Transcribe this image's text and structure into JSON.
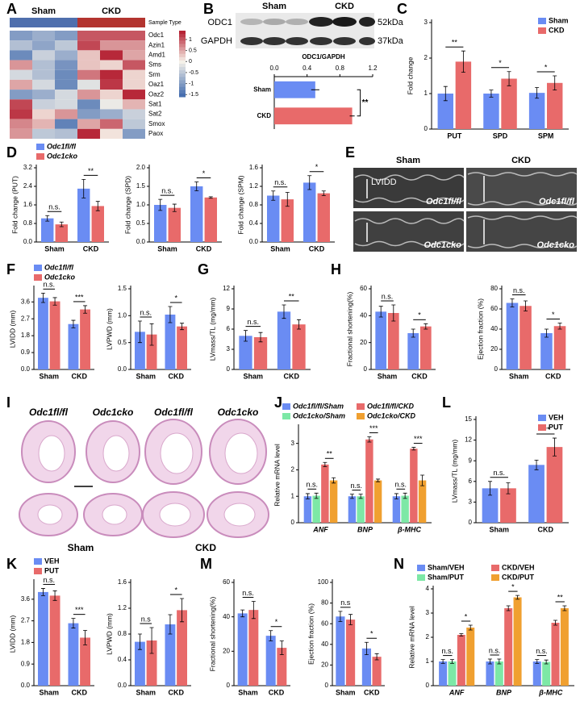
{
  "panel_labels": [
    "A",
    "B",
    "C",
    "D",
    "E",
    "F",
    "G",
    "H",
    "I",
    "J",
    "K",
    "L",
    "M",
    "N"
  ],
  "blot": {
    "groups": [
      "Sham",
      "CKD"
    ],
    "bands": [
      {
        "name": "ODC1",
        "size": "52kDa"
      },
      {
        "name": "GAPDH",
        "size": "37kDa"
      }
    ]
  },
  "echo": {
    "columns": [
      "Sham",
      "CKD"
    ],
    "measure": "LVIDD",
    "rows": [
      "Odc1fl/fl",
      "Odc1cko"
    ]
  },
  "histology": {
    "genotypes": [
      "Odc1fl/fl",
      "Odc1cko"
    ],
    "groups": [
      "Sham",
      "CKD"
    ]
  },
  "chart_data": [
    {
      "type": "heatmap",
      "legend_title": "Sample Type",
      "column_groups": [
        "Sham",
        "CKD"
      ],
      "group_colors": [
        "#4f6fad",
        "#b3342f"
      ],
      "rows": [
        "Odc1",
        "Azin1",
        "Amd1",
        "Sms",
        "Srm",
        "Oaz1",
        "Oaz2",
        "Sat1",
        "Sat2",
        "Smox",
        "Paox"
      ],
      "values": [
        [
          -1,
          -0.8,
          -1,
          1,
          1,
          1
        ],
        [
          -0.6,
          -0.9,
          -0.5,
          1.1,
          0.6,
          0.6
        ],
        [
          -1.2,
          -0.4,
          -0.8,
          0.3,
          1.3,
          0.5
        ],
        [
          0.6,
          -0.6,
          -1.1,
          0.3,
          0.2,
          1
        ],
        [
          -0.3,
          -0.6,
          -1.2,
          0.8,
          1.3,
          0.2
        ],
        [
          0.5,
          -0.3,
          -1.2,
          -0.2,
          1.2,
          0.2
        ],
        [
          -1,
          -0.8,
          -0.3,
          0.6,
          0.2,
          1.3
        ],
        [
          1.1,
          -0.4,
          -0.3,
          -1.2,
          -0.1,
          0.4
        ],
        [
          1.2,
          0.2,
          0.6,
          -1,
          -0.8,
          -0.4
        ],
        [
          0.7,
          0.4,
          -1.3,
          0.5,
          0.9,
          -0.5
        ],
        [
          0.6,
          -0.5,
          -0.6,
          1.3,
          0.1,
          -1
        ]
      ],
      "clim": [
        -1.6,
        1.4
      ],
      "cticks": [
        1,
        0.5,
        0,
        -0.5,
        -1,
        -1.5
      ],
      "colors": [
        "#3e68ad",
        "#f7f3ea",
        "#b2182b"
      ]
    },
    {
      "type": "hbar",
      "title": "ODC1/GAPDH",
      "categories": [
        "Sham",
        "CKD"
      ],
      "values": [
        0.5,
        0.95
      ],
      "errors": [
        0.05,
        0.03
      ],
      "colors": [
        "#6a8cf3",
        "#e86a6a"
      ],
      "xlim": [
        0,
        1.2
      ],
      "xticks": [
        {
          "value": 0,
          "label": "0.0"
        },
        0.4,
        0.8,
        1.2
      ],
      "annotation": "**"
    },
    {
      "type": "bar",
      "ylabel": "Fold change",
      "categories": [
        "PUT",
        "SPD",
        "SPM"
      ],
      "legend": "upper right",
      "series": [
        {
          "name": "Sham",
          "color": "#6a8cf3",
          "values": [
            1,
            1,
            1.02
          ],
          "errors": [
            0.2,
            0.1,
            0.15
          ]
        },
        {
          "name": "CKD",
          "color": "#e86a6a",
          "values": [
            1.9,
            1.42,
            1.3
          ],
          "errors": [
            0.3,
            0.2,
            0.2
          ]
        }
      ],
      "ylim": [
        0,
        3
      ],
      "yticks": [
        0,
        1,
        2,
        3
      ],
      "annotations": [
        "**",
        "*",
        "*"
      ]
    },
    {
      "type": "bar",
      "ylabel": "Fold change (PUT)",
      "categories": [
        "Sham",
        "CKD"
      ],
      "legend": "top",
      "series": [
        {
          "name": "Odc1fl/fl",
          "color": "#6a8cf3",
          "values": [
            1.02,
            2.3
          ],
          "errors": [
            0.12,
            0.4
          ]
        },
        {
          "name": "Odc1cko",
          "color": "#e86a6a",
          "values": [
            0.76,
            1.55
          ],
          "errors": [
            0.1,
            0.2
          ]
        }
      ],
      "ylim": [
        0,
        3.2
      ],
      "yticks": [
        {
          "value": 0,
          "label": "0.0"
        },
        0.8,
        1.6,
        2.4,
        3.2
      ],
      "annotations": [
        "n.s.",
        "**"
      ]
    },
    {
      "type": "bar",
      "ylabel": "Fold change (SPD)",
      "categories": [
        "Sham",
        "CKD"
      ],
      "series": [
        {
          "color": "#6a8cf3",
          "values": [
            1,
            1.5
          ],
          "errors": [
            0.15,
            0.12
          ]
        },
        {
          "color": "#e86a6a",
          "values": [
            0.92,
            1.2
          ],
          "errors": [
            0.1,
            0.02
          ]
        }
      ],
      "ylim": [
        0,
        2
      ],
      "yticks": [
        {
          "value": 0,
          "label": "0.0"
        },
        0.5,
        {
          "value": 1,
          "label": "1.0"
        },
        1.5,
        {
          "value": 2,
          "label": "2.0"
        }
      ],
      "annotations": [
        "n.s.",
        "*"
      ]
    },
    {
      "type": "bar",
      "ylabel": "Fold change (SPM)",
      "categories": [
        "Sham",
        "CKD"
      ],
      "series": [
        {
          "color": "#6a8cf3",
          "values": [
            1,
            1.28
          ],
          "errors": [
            0.1,
            0.15
          ]
        },
        {
          "color": "#e86a6a",
          "values": [
            0.92,
            1.05
          ],
          "errors": [
            0.15,
            0.05
          ]
        }
      ],
      "ylim": [
        0,
        1.6
      ],
      "yticks": [
        {
          "value": 0,
          "label": "0.0"
        },
        0.4,
        0.8,
        1.2,
        1.6
      ],
      "annotations": [
        "n.s.",
        "*"
      ]
    },
    {
      "type": "bar",
      "ylabel": "LVIDD (mm)",
      "categories": [
        "Sham",
        "CKD"
      ],
      "legend": "top",
      "series": [
        {
          "name": "Odc1fl/fl",
          "color": "#6a8cf3",
          "values": [
            3.82,
            2.42
          ],
          "errors": [
            0.25,
            0.2
          ]
        },
        {
          "name": "Odc1cko",
          "color": "#e86a6a",
          "values": [
            3.63,
            3.2
          ],
          "errors": [
            0.2,
            0.2
          ]
        }
      ],
      "ylim": [
        0,
        4.3
      ],
      "yticks": [
        {
          "value": 0,
          "label": "0.0"
        },
        0.9,
        1.8,
        2.7,
        3.6
      ],
      "annotations": [
        "n.s.",
        "***"
      ]
    },
    {
      "type": "bar",
      "ylabel": "LVPWD (mm)",
      "categories": [
        "Sham",
        "CKD"
      ],
      "series": [
        {
          "color": "#6a8cf3",
          "values": [
            0.7,
            1.02
          ],
          "errors": [
            0.2,
            0.15
          ]
        },
        {
          "color": "#e86a6a",
          "values": [
            0.65,
            0.8
          ],
          "errors": [
            0.2,
            0.06
          ]
        }
      ],
      "ylim": [
        0,
        1.5
      ],
      "yticks": [
        {
          "value": 0,
          "label": "0.0"
        },
        0.5,
        {
          "value": 1,
          "label": "1.0"
        },
        1.5
      ],
      "annotations": [
        "n.s.",
        "*"
      ]
    },
    {
      "type": "bar",
      "ylabel": "LVmass/TL (mg/mm)",
      "categories": [
        "Sham",
        "CKD"
      ],
      "series": [
        {
          "color": "#6a8cf3",
          "values": [
            5,
            8.6
          ],
          "errors": [
            0.8,
            1
          ]
        },
        {
          "color": "#e86a6a",
          "values": [
            4.8,
            6.7
          ],
          "errors": [
            0.7,
            0.7
          ]
        }
      ],
      "ylim": [
        0,
        12
      ],
      "yticks": [
        0,
        3,
        6,
        9,
        12
      ],
      "annotations": [
        "n.s.",
        "**"
      ]
    },
    {
      "type": "bar",
      "ylabel": "Fractional shortening(%)",
      "categories": [
        "Sham",
        "CKD"
      ],
      "series": [
        {
          "color": "#6a8cf3",
          "values": [
            43,
            27
          ],
          "errors": [
            4,
            3
          ]
        },
        {
          "color": "#e86a6a",
          "values": [
            42,
            32
          ],
          "errors": [
            6,
            2
          ]
        }
      ],
      "ylim": [
        0,
        60
      ],
      "yticks": [
        0,
        20,
        40,
        60
      ],
      "annotations": [
        "n.s.",
        "*"
      ]
    },
    {
      "type": "bar",
      "ylabel": "Ejection fraction (%)",
      "categories": [
        "Sham",
        "CKD"
      ],
      "series": [
        {
          "color": "#6a8cf3",
          "values": [
            66,
            36
          ],
          "errors": [
            4,
            4
          ]
        },
        {
          "color": "#e86a6a",
          "values": [
            63,
            43
          ],
          "errors": [
            5,
            3
          ]
        }
      ],
      "ylim": [
        0,
        80
      ],
      "yticks": [
        0,
        20,
        40,
        60,
        80
      ],
      "annotations": [
        "n.s.",
        "*"
      ]
    },
    {
      "type": "bar",
      "ylabel": "Relative mRNA level",
      "categories": [
        "ANF",
        "BNP",
        "β-MHC"
      ],
      "italic_categories": true,
      "legend": "top",
      "series": [
        {
          "name": "Odc1fl/fl/Sham",
          "color": "#6a8cf3",
          "values": [
            1,
            1,
            1
          ],
          "errors": [
            0.1,
            0.08,
            0.1
          ]
        },
        {
          "name": "Odc1cko/Sham",
          "color": "#7de8a6",
          "values": [
            1.02,
            1,
            1.02
          ],
          "errors": [
            0.1,
            0.08,
            0.1
          ]
        },
        {
          "name": "Odc1fl/fl/CKD",
          "color": "#e86a6a",
          "values": [
            2.2,
            3.15,
            2.8
          ],
          "errors": [
            0.08,
            0.1,
            0.05
          ]
        },
        {
          "name": "Odc1cko/CKD",
          "color": "#f0a030",
          "values": [
            1.6,
            1.6,
            1.6
          ],
          "errors": [
            0.1,
            0.05,
            0.2
          ]
        }
      ],
      "ylim": [
        0,
        3.6
      ],
      "yticks": [
        0,
        1,
        2,
        3
      ],
      "annotations": [
        [
          "n.s.",
          "**"
        ],
        [
          "n.s.",
          "***"
        ],
        [
          "n.s.",
          "***"
        ]
      ]
    },
    {
      "type": "bar",
      "ylabel": "LVmass/TL (mg/mm)",
      "categories": [
        "Sham",
        "CKD"
      ],
      "legend": "upper right",
      "series": [
        {
          "name": "VEH",
          "color": "#6a8cf3",
          "values": [
            5,
            8.4
          ],
          "errors": [
            1,
            0.7
          ]
        },
        {
          "name": "PUT",
          "color": "#e86a6a",
          "values": [
            5,
            11
          ],
          "errors": [
            0.8,
            1.3
          ]
        }
      ],
      "ylim": [
        0,
        15
      ],
      "yticks": [
        0,
        3,
        6,
        9,
        12,
        15
      ],
      "annotations": [
        "n.s.",
        "***"
      ]
    },
    {
      "type": "bar",
      "ylabel": "LVIDD (mm)",
      "categories": [
        "Sham",
        "CKD"
      ],
      "legend": "top",
      "series": [
        {
          "name": "VEH",
          "color": "#6a8cf3",
          "values": [
            3.9,
            2.6
          ],
          "errors": [
            0.15,
            0.2
          ]
        },
        {
          "name": "PUT",
          "color": "#e86a6a",
          "values": [
            3.75,
            2
          ],
          "errors": [
            0.2,
            0.3
          ]
        }
      ],
      "ylim": [
        0,
        4.3
      ],
      "yticks": [
        {
          "value": 0,
          "label": "0.0"
        },
        0.9,
        1.8,
        2.7,
        3.6
      ],
      "annotations": [
        "n.s.",
        "***"
      ]
    },
    {
      "type": "bar",
      "ylabel": "LVPWD (mm)",
      "categories": [
        "Sham",
        "CKD"
      ],
      "series": [
        {
          "color": "#6a8cf3",
          "values": [
            0.68,
            0.95
          ],
          "errors": [
            0.12,
            0.15
          ]
        },
        {
          "color": "#e86a6a",
          "values": [
            0.7,
            1.17
          ],
          "errors": [
            0.2,
            0.18
          ]
        }
      ],
      "ylim": [
        0,
        1.6
      ],
      "yticks": [
        {
          "value": 0,
          "label": "0.0"
        },
        0.4,
        0.8,
        1.2,
        1.6
      ],
      "annotations": [
        "n.s",
        "*"
      ]
    },
    {
      "type": "bar",
      "ylabel": "Fractional shortening(%)",
      "categories": [
        "Sham",
        "CKD"
      ],
      "series": [
        {
          "color": "#6a8cf3",
          "values": [
            42,
            29
          ],
          "errors": [
            2,
            3
          ]
        },
        {
          "color": "#e86a6a",
          "values": [
            44,
            22
          ],
          "errors": [
            5,
            4
          ]
        }
      ],
      "ylim": [
        0,
        60
      ],
      "yticks": [
        0,
        20,
        40,
        60
      ],
      "annotations": [
        "n.s.",
        "*"
      ]
    },
    {
      "type": "bar",
      "ylabel": "Ejection fraction (%)",
      "categories": [
        "Sham",
        "CKD"
      ],
      "series": [
        {
          "color": "#6a8cf3",
          "values": [
            67,
            36
          ],
          "errors": [
            5,
            6
          ]
        },
        {
          "color": "#e86a6a",
          "values": [
            64,
            28
          ],
          "errors": [
            5,
            3
          ]
        }
      ],
      "ylim": [
        0,
        100
      ],
      "yticks": [
        0,
        20,
        40,
        60,
        80,
        100
      ],
      "annotations": [
        "n.s",
        "*"
      ]
    },
    {
      "type": "bar",
      "ylabel": "Relative mRNA level",
      "categories": [
        "ANF",
        "BNP",
        "β-MHC"
      ],
      "italic_categories": true,
      "legend": "top",
      "series": [
        {
          "name": "Sham/VEH",
          "color": "#6a8cf3",
          "values": [
            1,
            1,
            1
          ],
          "errors": [
            0.08,
            0.1,
            0.08
          ]
        },
        {
          "name": "Sham/PUT",
          "color": "#7de8a6",
          "values": [
            1,
            1,
            0.98
          ],
          "errors": [
            0.08,
            0.1,
            0.08
          ]
        },
        {
          "name": "CKD/VEH",
          "color": "#e86a6a",
          "values": [
            2.1,
            3.2,
            2.6
          ],
          "errors": [
            0.05,
            0.1,
            0.1
          ]
        },
        {
          "name": "CKD/PUT",
          "color": "#f0a030",
          "values": [
            2.4,
            3.65,
            3.2
          ],
          "errors": [
            0.1,
            0.08,
            0.1
          ]
        }
      ],
      "ylim": [
        0,
        4
      ],
      "yticks": [
        0,
        1,
        2,
        3,
        4
      ],
      "annotations": [
        [
          "n.s.",
          "*"
        ],
        [
          "n.s.",
          "*"
        ],
        [
          "n.s.",
          "**"
        ]
      ]
    }
  ]
}
